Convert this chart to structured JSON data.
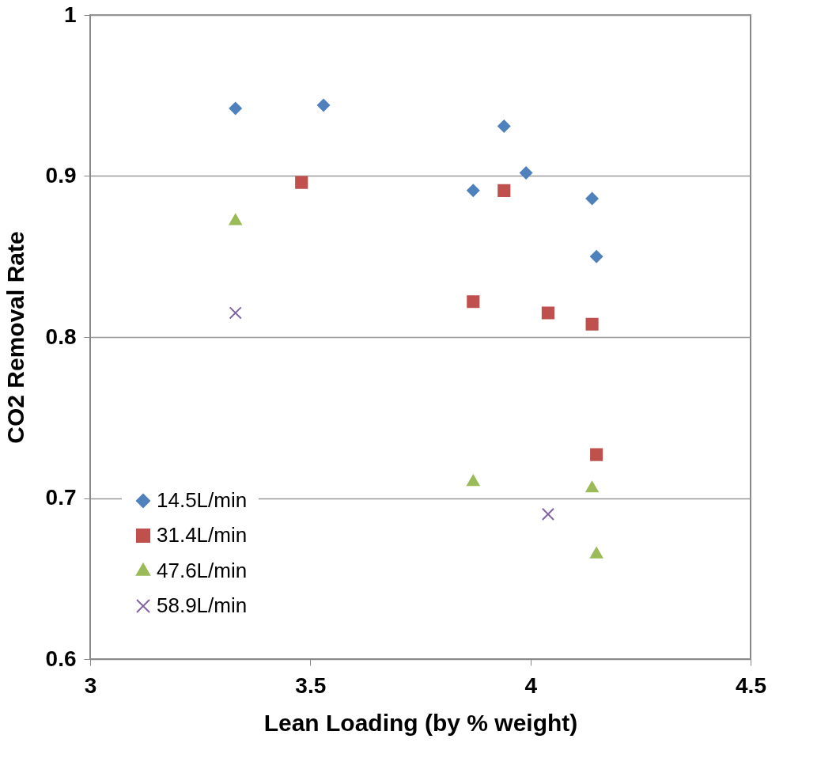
{
  "chart_data": {
    "type": "scatter",
    "xlabel": "Lean Loading (by % weight)",
    "ylabel": "CO2 Removal Rate",
    "xlim": [
      3,
      4.5
    ],
    "xticks": [
      3,
      3.5,
      4,
      4.5
    ],
    "ylim": [
      0.6,
      1
    ],
    "yticks": [
      0.6,
      0.7,
      0.8,
      0.9,
      1
    ],
    "grid": "y",
    "legend": "bottom left",
    "series": [
      {
        "name": "14.5L/min",
        "color": "#4f81bd",
        "marker": "diamond",
        "x": [
          3.33,
          3.53,
          3.94,
          3.87,
          3.99,
          4.14,
          4.15
        ],
        "values": [
          0.942,
          0.944,
          0.931,
          0.891,
          0.902,
          0.886,
          0.85
        ]
      },
      {
        "name": "31.4L/min",
        "color": "#c0504d",
        "marker": "square",
        "x": [
          3.48,
          3.94,
          3.87,
          4.04,
          4.14,
          4.15
        ],
        "values": [
          0.896,
          0.891,
          0.822,
          0.815,
          0.808,
          0.727
        ]
      },
      {
        "name": "47.6L/min",
        "color": "#9bbb59",
        "marker": "triangle",
        "x": [
          3.33,
          3.87,
          4.14,
          4.15
        ],
        "values": [
          0.872,
          0.71,
          0.706,
          0.665
        ]
      },
      {
        "name": "58.9L/min",
        "color": "#8064a2",
        "marker": "cross",
        "x": [
          3.33,
          4.04
        ],
        "values": [
          0.815,
          0.69
        ]
      }
    ]
  }
}
